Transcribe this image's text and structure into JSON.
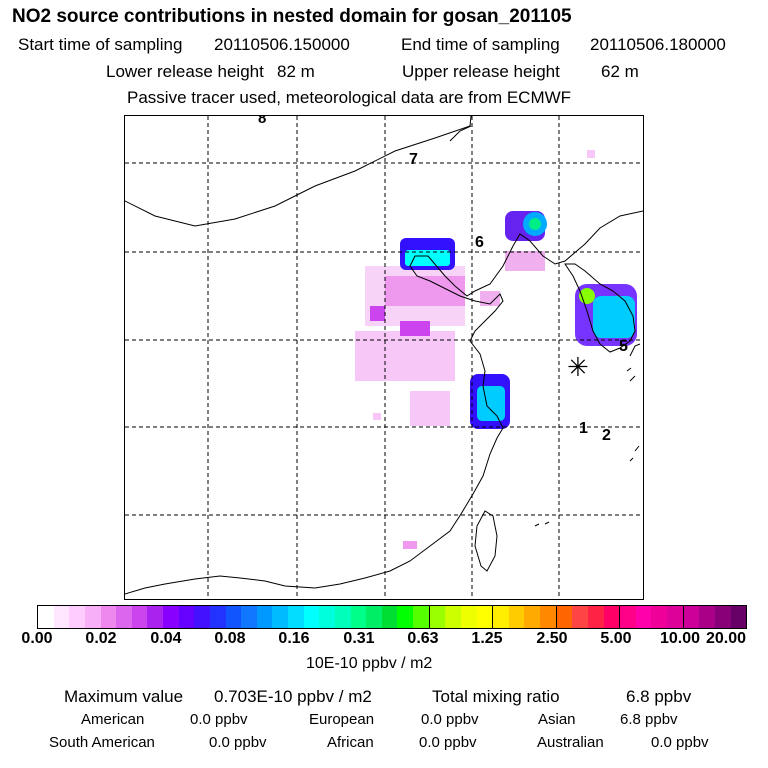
{
  "title": "NO2 source contributions in nested domain for gosan_201105",
  "header": {
    "start_label": "Start time of sampling",
    "start_value": "20110506.150000",
    "end_label": "End time of sampling",
    "end_value": "20110506.180000",
    "lower_label": "Lower release height",
    "lower_value": "82 m",
    "upper_label": "Upper release height",
    "upper_value": "62 m",
    "note": "Passive tracer used, meteorological data are from ECMWF"
  },
  "map": {
    "trajectory_markers": [
      "8",
      "7",
      "6",
      "5",
      "1",
      "2"
    ],
    "release_site_symbol": "✳"
  },
  "colorbar": {
    "ticks": [
      "0.00",
      "0.02",
      "0.04",
      "0.08",
      "0.16",
      "0.31",
      "0.63",
      "1.25",
      "2.50",
      "5.00",
      "10.00",
      "20.00"
    ],
    "units": "10E-10 ppbv / m2",
    "colors": [
      "#ffffff",
      "#ffe6ff",
      "#ffccff",
      "#f7b0f7",
      "#ee88ee",
      "#dd66ee",
      "#cc44ee",
      "#aa22ee",
      "#8800ff",
      "#6600ff",
      "#4411ff",
      "#2233ff",
      "#1155ff",
      "#1177ff",
      "#0099ff",
      "#00bbff",
      "#00ddff",
      "#00ffff",
      "#00ffdd",
      "#00ffbb",
      "#00ff88",
      "#00ee66",
      "#00dd33",
      "#00ff00",
      "#55ff00",
      "#99ff00",
      "#ccff00",
      "#eeff00",
      "#ffff00",
      "#ffee00",
      "#ffcc00",
      "#ffaa00",
      "#ff8800",
      "#ff6600",
      "#ff4444",
      "#ff2244",
      "#ff0066",
      "#ff0088",
      "#ff00aa",
      "#ee0099",
      "#dd0099",
      "#cc0099",
      "#aa0088",
      "#880077",
      "#660066"
    ]
  },
  "summary": {
    "max_label": "Maximum value",
    "max_value": "0.703E-10 ppbv / m2",
    "total_label": "Total mixing ratio",
    "total_value": "6.8 ppbv",
    "regions": [
      {
        "name": "American",
        "value": "0.0 ppbv"
      },
      {
        "name": "European",
        "value": "0.0 ppbv"
      },
      {
        "name": "Asian",
        "value": "6.8 ppbv"
      },
      {
        "name": "South American",
        "value": "0.0 ppbv"
      },
      {
        "name": "African",
        "value": "0.0 ppbv"
      },
      {
        "name": "Australian",
        "value": "0.0 ppbv"
      }
    ]
  }
}
